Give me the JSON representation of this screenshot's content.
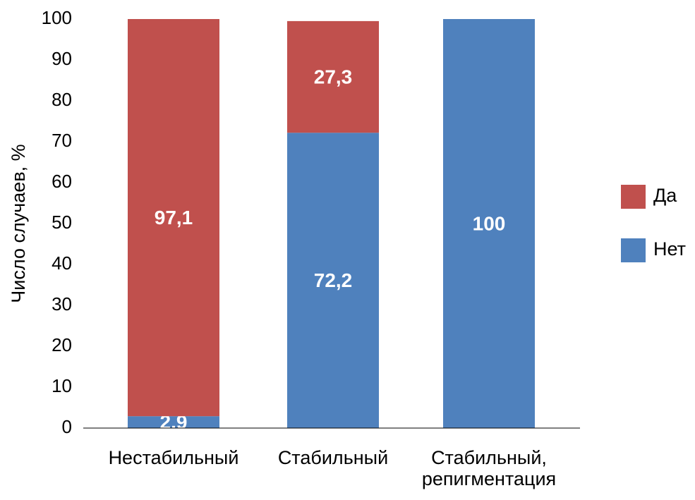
{
  "chart_data": {
    "type": "stacked_bar",
    "y_label": "Число случаев, %",
    "categories": [
      "Нестабильный",
      "Стабильный",
      "Стабильный,\nрепигментация"
    ],
    "series": [
      {
        "name": "Нет",
        "color": "#4f81bd",
        "values": [
          2.9,
          72.2,
          100
        ],
        "value_labels": [
          "2,9",
          "72,2",
          "100"
        ]
      },
      {
        "name": "Да",
        "color": "#c0504d",
        "values": [
          97.1,
          27.3,
          null
        ],
        "value_labels": [
          "97,1",
          "27,3",
          null
        ]
      }
    ],
    "ylim": [
      0,
      100
    ],
    "yticks": [
      0,
      10,
      20,
      30,
      40,
      50,
      60,
      70,
      80,
      90,
      100
    ],
    "grid": false,
    "legend": "right"
  }
}
